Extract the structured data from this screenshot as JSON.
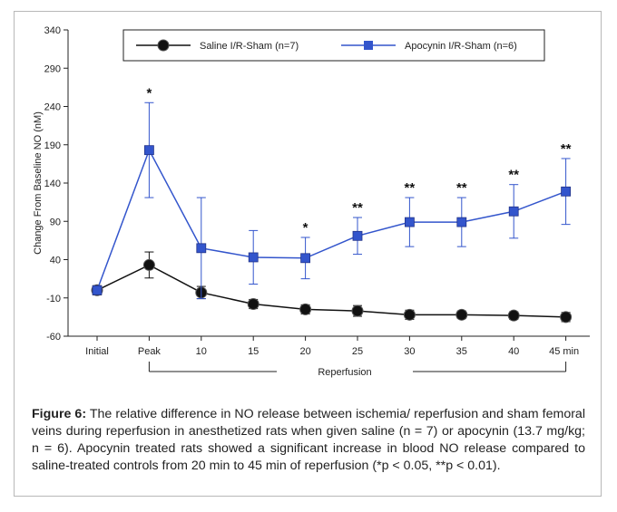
{
  "figure": {
    "caption_label": "Figure 6:",
    "caption_text": " The relative difference in NO release between ischemia/ reperfusion and sham femoral veins during reperfusion in anesthetized rats when given saline (n = 7) or apocynin (13.7 mg/kg; n = 6). Apocynin treated rats showed a significant increase in blood NO release compared to saline-treated controls from 20 min to 45 min of reperfusion (*p < 0.05, **p < 0.01)."
  },
  "chart_data": {
    "type": "line",
    "title": "",
    "xlabel": "",
    "ylabel": "Change From Baseline NO (nM)",
    "ylim": [
      -60,
      340
    ],
    "yticks": [
      340,
      290,
      240,
      190,
      140,
      90,
      40,
      -10,
      -60
    ],
    "categories": [
      "Initial",
      "Peak",
      "10",
      "15",
      "20",
      "25",
      "30",
      "35",
      "40",
      "45 min"
    ],
    "bracket_label": "Reperfusion",
    "legend_position": "top",
    "series": [
      {
        "name": "Saline I/R-Sham (n=7)",
        "color": "#111111",
        "marker": "circle",
        "x_index": [
          0,
          1,
          2,
          3,
          4,
          5,
          6,
          7,
          8,
          9
        ],
        "values": [
          0,
          33,
          -3,
          -18,
          -25,
          -27,
          -32,
          -32,
          -33,
          -35
        ],
        "errors": [
          6,
          17,
          8,
          6,
          6,
          7,
          6,
          5,
          5,
          6
        ]
      },
      {
        "name": "Apocynin I/R-Sham (n=6)",
        "color": "#3355cc",
        "marker": "square",
        "x_index": [
          0,
          1,
          2,
          3,
          4,
          5,
          6,
          7,
          8,
          9
        ],
        "values": [
          0,
          183,
          55,
          43,
          42,
          71,
          89,
          89,
          103,
          129
        ],
        "errors": [
          5,
          62,
          66,
          35,
          27,
          24,
          32,
          32,
          35,
          43
        ]
      }
    ],
    "annotations": [
      {
        "x_index": 1,
        "text": "*"
      },
      {
        "x_index": 4,
        "text": "*"
      },
      {
        "x_index": 5,
        "text": "**"
      },
      {
        "x_index": 6,
        "text": "**"
      },
      {
        "x_index": 7,
        "text": "**"
      },
      {
        "x_index": 8,
        "text": "**"
      },
      {
        "x_index": 9,
        "text": "**"
      }
    ],
    "grid": false
  }
}
